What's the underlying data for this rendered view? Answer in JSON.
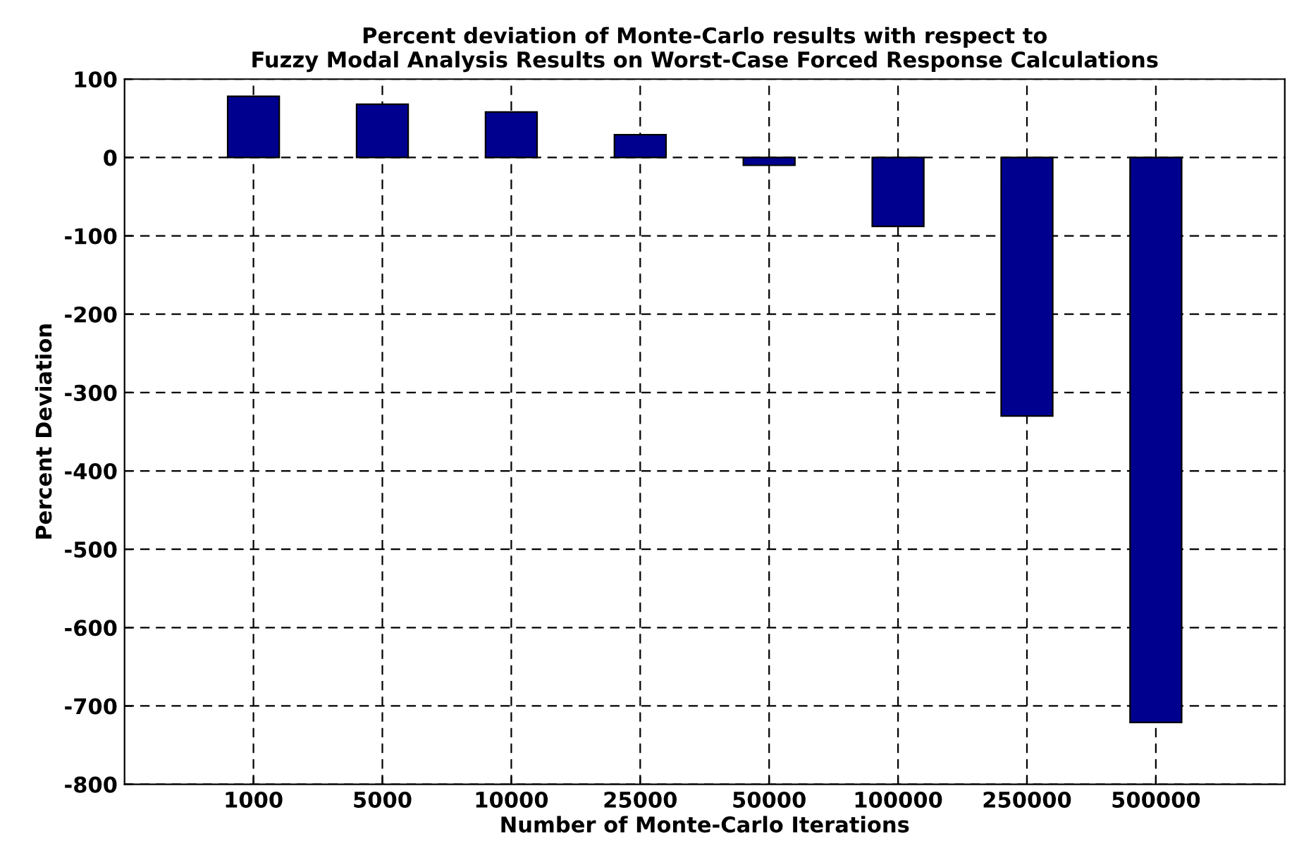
{
  "chart_data": {
    "type": "bar",
    "title": "Percent deviation of Monte-Carlo results with respect to\nFuzzy Modal Analysis Results on Worst-Case Forced Response Calculations",
    "xlabel": "Number of Monte-Carlo Iterations",
    "ylabel": "Percent Deviation",
    "categories": [
      "1000",
      "5000",
      "10000",
      "25000",
      "50000",
      "100000",
      "250000",
      "500000"
    ],
    "series": [
      {
        "color": "#00008f",
        "values": [
          78,
          68,
          58,
          29,
          -10,
          -88,
          -330,
          -721
        ]
      }
    ],
    "ylim": [
      -800,
      100
    ],
    "yticks": [
      -800,
      -700,
      -600,
      -500,
      -400,
      -300,
      -200,
      -100,
      0,
      100
    ],
    "grid": true,
    "line_style": "dashed"
  }
}
